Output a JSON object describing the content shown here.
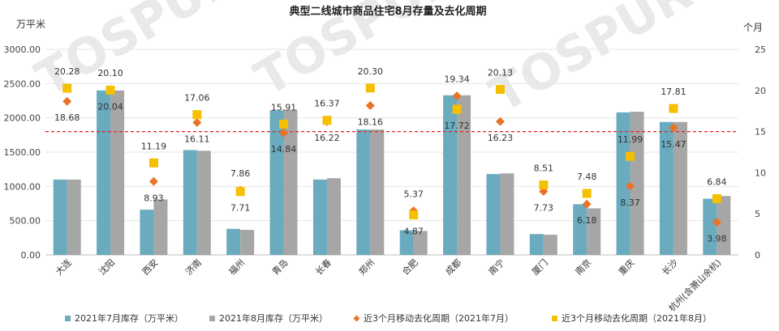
{
  "chart_data": {
    "type": "bar",
    "title": "典型二线城市商品住宅8月存量及去化周期",
    "left_axis_unit": "万平米",
    "right_axis_unit": "个月",
    "categories": [
      "大连",
      "沈阳",
      "西安",
      "济南",
      "福州",
      "青岛",
      "长春",
      "郑州",
      "合肥",
      "成都",
      "南宁",
      "厦门",
      "南京",
      "重庆",
      "长沙",
      "杭州(含萧山余杭)"
    ],
    "left_axis": {
      "min": 0,
      "max": 3000,
      "step": 500,
      "tick_labels": [
        "0.00",
        "500.00",
        "1000.00",
        "1500.00",
        "2000.00",
        "2500.00",
        "3000.00"
      ]
    },
    "right_axis": {
      "min": 0,
      "max": 25,
      "step": 5,
      "tick_labels": [
        "0",
        "5",
        "10",
        "15",
        "20",
        "25"
      ]
    },
    "reference_line": {
      "axis": "right",
      "value": 15
    },
    "series": [
      {
        "name": "2021年7月库存（万平米）",
        "type": "bar",
        "axis": "left",
        "color": "#6aabbf",
        "values": [
          1100,
          2400,
          660,
          1530,
          380,
          2110,
          1100,
          1830,
          360,
          2330,
          1180,
          305,
          740,
          2080,
          1940,
          820
        ]
      },
      {
        "name": "2021年8月库存（万平米）",
        "type": "bar",
        "axis": "left",
        "color": "#a6a6a6",
        "values": [
          1100,
          2400,
          810,
          1520,
          365,
          2120,
          1120,
          1830,
          350,
          2330,
          1190,
          295,
          680,
          2090,
          1940,
          860
        ]
      },
      {
        "name": "近3个月移动去化周期（2021年7月）",
        "type": "scatter",
        "marker": "diamond",
        "axis": "right",
        "color": "#e8742a",
        "values": [
          18.68,
          20.1,
          8.93,
          16.11,
          7.86,
          14.84,
          16.22,
          18.16,
          5.37,
          19.34,
          16.23,
          7.73,
          6.18,
          8.37,
          15.47,
          3.98
        ],
        "labels": [
          "18.68",
          "20.10",
          "8.93",
          "16.11",
          "7.86",
          "14.84",
          "16.22",
          "18.16",
          "5.37",
          "19.34",
          "16.23",
          "7.73",
          "6.18",
          "8.37",
          "15.47",
          "3.98"
        ]
      },
      {
        "name": "近3个月移动去化周期（2021年8月）",
        "type": "scatter",
        "marker": "square",
        "axis": "right",
        "color": "#f5c000",
        "values": [
          20.28,
          20.04,
          11.19,
          17.06,
          7.71,
          15.91,
          16.37,
          20.3,
          4.87,
          17.72,
          20.13,
          8.51,
          7.48,
          11.99,
          17.81,
          6.84
        ],
        "labels": [
          "20.28",
          "20.04",
          "11.19",
          "17.06",
          "7.71",
          "15.91",
          "16.37",
          "20.30",
          "4.87",
          "17.72",
          "20.13",
          "8.51",
          "7.48",
          "11.99",
          "17.81",
          "6.84"
        ]
      }
    ],
    "legend_position": "bottom"
  }
}
